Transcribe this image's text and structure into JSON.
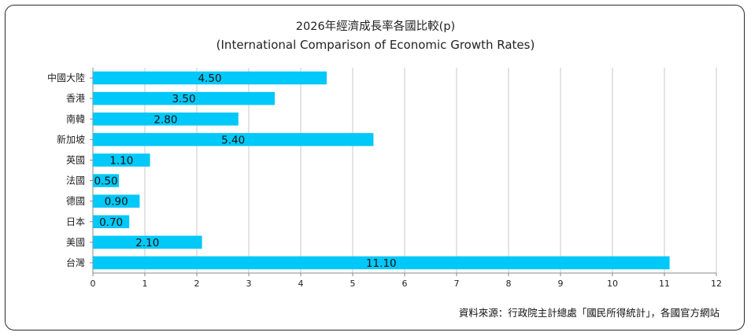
{
  "chart_data": {
    "type": "bar",
    "orientation": "horizontal",
    "title": "2026年經濟成長率各國比較(p)",
    "subtitle": "(International Comparison of Economic Growth Rates)",
    "categories": [
      "中國大陸",
      "香港",
      "南韓",
      "新加坡",
      "英國",
      "法國",
      "德國",
      "日本",
      "美國",
      "台灣"
    ],
    "values": [
      4.5,
      3.5,
      2.8,
      5.4,
      1.1,
      0.5,
      0.9,
      0.7,
      2.1,
      11.1
    ],
    "data_labels": [
      "4.50",
      "3.50",
      "2.80",
      "5.40",
      "1.10",
      "0.50",
      "0.90",
      "0.70",
      "2.10",
      "11.10"
    ],
    "xlim": [
      0,
      12
    ],
    "x_ticks": [
      0,
      1,
      2,
      3,
      4,
      5,
      6,
      7,
      8,
      9,
      10,
      11,
      12
    ],
    "grid": true,
    "legend": "none",
    "bar_color": "#00c8f8",
    "grid_color": "#c8c8c8",
    "source_note": "資料來源：行政院主計總處「國民所得統計」，各國官方網站"
  }
}
